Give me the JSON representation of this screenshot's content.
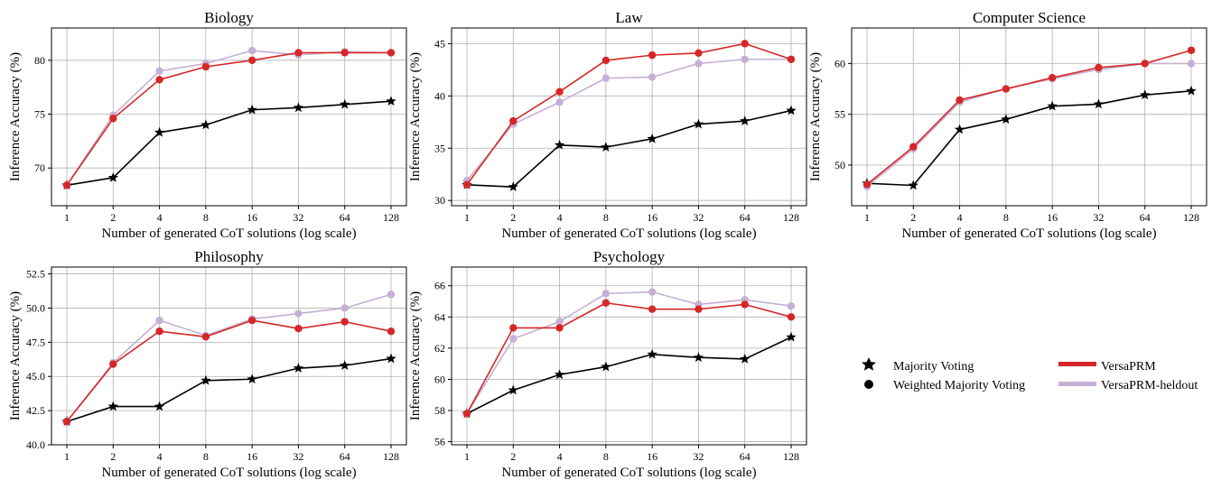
{
  "figure": {
    "legend": {
      "majority": "Majority Voting",
      "weighted": "Weighted Majority Voting",
      "versaprm": "VersaPRM",
      "heldout": "VersaPRM-heldout"
    },
    "colors": {
      "majority": "#000000",
      "versaprm": "#d62728",
      "heldout": "#c5b0d5",
      "grid": "#b0b0b0"
    }
  },
  "chart_data": [
    {
      "type": "line",
      "title": "Biology",
      "xlabel": "Number of generated CoT solutions (log scale)",
      "ylabel": "Inference Accuracy (%)",
      "x": [
        1,
        2,
        4,
        8,
        16,
        32,
        64,
        128
      ],
      "ylim": [
        66.5,
        83
      ],
      "yticks": [
        70,
        75,
        80
      ],
      "series": [
        {
          "name": "Majority Voting",
          "values": [
            68.4,
            69.1,
            73.3,
            74.0,
            75.4,
            75.6,
            75.9,
            76.2
          ]
        },
        {
          "name": "VersaPRM-heldout",
          "values": [
            68.4,
            74.9,
            79.0,
            79.7,
            80.9,
            80.5,
            80.8,
            80.7
          ]
        },
        {
          "name": "VersaPRM",
          "values": [
            68.4,
            74.6,
            78.2,
            79.4,
            80.0,
            80.7,
            80.7,
            80.7
          ]
        }
      ]
    },
    {
      "type": "line",
      "title": "Law",
      "xlabel": "Number of generated CoT solutions (log scale)",
      "ylabel": "Inference Accuracy (%)",
      "x": [
        1,
        2,
        4,
        8,
        16,
        32,
        64,
        128
      ],
      "ylim": [
        29.5,
        46.5
      ],
      "yticks": [
        30,
        35,
        40,
        45
      ],
      "series": [
        {
          "name": "Majority Voting",
          "values": [
            31.5,
            31.3,
            35.3,
            35.1,
            35.9,
            37.3,
            37.6,
            38.6
          ]
        },
        {
          "name": "VersaPRM-heldout",
          "values": [
            31.9,
            37.3,
            39.4,
            41.7,
            41.8,
            43.1,
            43.5,
            43.5
          ]
        },
        {
          "name": "VersaPRM",
          "values": [
            31.5,
            37.6,
            40.4,
            43.4,
            43.9,
            44.1,
            45.0,
            43.5
          ]
        }
      ]
    },
    {
      "type": "line",
      "title": "Computer Science",
      "xlabel": "Number of generated CoT solutions (log scale)",
      "ylabel": "Inference Accuracy (%)",
      "x": [
        1,
        2,
        4,
        8,
        16,
        32,
        64,
        128
      ],
      "ylim": [
        46,
        63.5
      ],
      "yticks": [
        50,
        55,
        60
      ],
      "series": [
        {
          "name": "Majority Voting",
          "values": [
            48.2,
            48.0,
            53.5,
            54.5,
            55.8,
            56.0,
            56.9,
            57.3
          ]
        },
        {
          "name": "VersaPRM-heldout",
          "values": [
            47.9,
            51.6,
            56.2,
            57.5,
            58.5,
            59.4,
            60.0,
            60.0
          ]
        },
        {
          "name": "VersaPRM",
          "values": [
            48.1,
            51.8,
            56.4,
            57.5,
            58.6,
            59.6,
            60.0,
            61.3
          ]
        }
      ]
    },
    {
      "type": "line",
      "title": "Philosophy",
      "xlabel": "Number of generated CoT solutions (log scale)",
      "ylabel": "Inference Accuracy (%)",
      "x": [
        1,
        2,
        4,
        8,
        16,
        32,
        64,
        128
      ],
      "ylim": [
        40,
        53
      ],
      "yticks": [
        40.0,
        42.5,
        45.0,
        47.5,
        50.0,
        52.5
      ],
      "ytick_labels": [
        "40.0",
        "42.5",
        "45.0",
        "47.5",
        "50.0",
        "52.5"
      ],
      "series": [
        {
          "name": "Majority Voting",
          "values": [
            41.7,
            42.8,
            42.8,
            44.7,
            44.8,
            45.6,
            45.8,
            46.3
          ]
        },
        {
          "name": "VersaPRM-heldout",
          "values": [
            41.7,
            46.0,
            49.1,
            48.0,
            49.2,
            49.6,
            50.0,
            51.0
          ]
        },
        {
          "name": "VersaPRM",
          "values": [
            41.7,
            45.9,
            48.3,
            47.9,
            49.1,
            48.5,
            49.0,
            48.3
          ]
        }
      ]
    },
    {
      "type": "line",
      "title": "Psychology",
      "xlabel": "Number of generated CoT solutions (log scale)",
      "ylabel": "Inference Accuracy (%)",
      "x": [
        1,
        2,
        4,
        8,
        16,
        32,
        64,
        128
      ],
      "ylim": [
        55.8,
        67.2
      ],
      "yticks": [
        56,
        58,
        60,
        62,
        64,
        66
      ],
      "series": [
        {
          "name": "Majority Voting",
          "values": [
            57.8,
            59.3,
            60.3,
            60.8,
            61.6,
            61.4,
            61.3,
            62.7
          ]
        },
        {
          "name": "VersaPRM-heldout",
          "values": [
            57.8,
            62.6,
            63.7,
            65.5,
            65.6,
            64.8,
            65.1,
            64.7
          ]
        },
        {
          "name": "VersaPRM",
          "values": [
            57.8,
            63.3,
            63.3,
            64.9,
            64.5,
            64.5,
            64.8,
            64.0
          ]
        }
      ]
    }
  ]
}
